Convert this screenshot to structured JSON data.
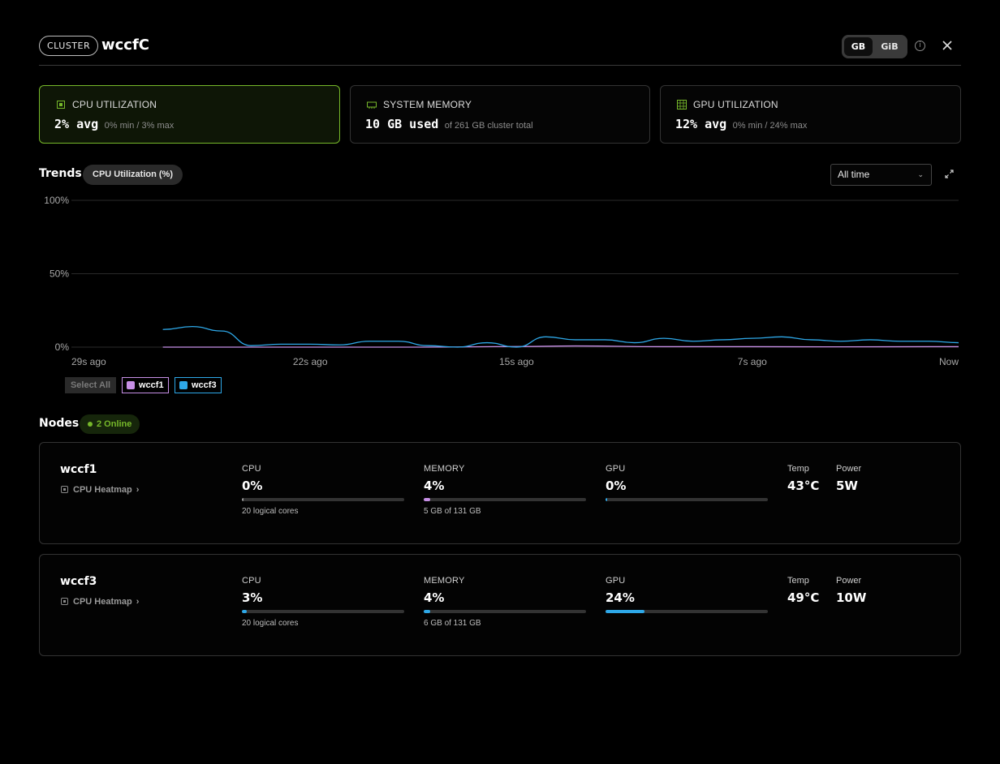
{
  "header": {
    "badge": "CLUSTER",
    "cluster_name": "wccfC",
    "units": [
      "GB",
      "GiB"
    ],
    "selected_unit": "GB",
    "info_icon": "info-icon",
    "close_icon": "close-icon"
  },
  "stats": {
    "cpu": {
      "label": "CPU UTILIZATION",
      "value": "2% avg",
      "sub": "0% min / 3% max",
      "icon": "cpu-chip-icon"
    },
    "memory": {
      "label": "SYSTEM MEMORY",
      "value": "10 GB used",
      "sub": "of 261 GB cluster total",
      "icon": "memory-module-icon"
    },
    "gpu": {
      "label": "GPU UTILIZATION",
      "value": "12% avg",
      "sub": "0% min / 24% max",
      "icon": "gpu-grid-icon"
    }
  },
  "trends": {
    "title": "Trends",
    "metric": "CPU Utilization (%)",
    "range": "All time",
    "expand_icon": "expand-icon"
  },
  "legend": {
    "select_all": "Select All",
    "items": [
      {
        "name": "wccf1",
        "color": "#c78fe6"
      },
      {
        "name": "wccf3",
        "color": "#2ea8e8"
      }
    ]
  },
  "chart_data": {
    "type": "line",
    "ylim": [
      0,
      100
    ],
    "y_ticks": [
      "100%",
      "50%",
      "0%"
    ],
    "x_ticks": [
      "29s ago",
      "22s ago",
      "15s ago",
      "7s ago",
      "Now"
    ],
    "x_tick_values": [
      -29,
      -22,
      -15,
      -7,
      0
    ],
    "xlim": [
      -29,
      0
    ],
    "grid": true,
    "legend_position": "bottom-left",
    "series": [
      {
        "name": "wccf1",
        "color": "#c78fe6",
        "x": [
          -27,
          -24,
          -21,
          -18,
          -15,
          -13,
          -10,
          -7,
          -4,
          -1,
          0
        ],
        "values": [
          0,
          0,
          0,
          0,
          0.4,
          0.8,
          0.3,
          0.3,
          0.2,
          0.3,
          0.3
        ]
      },
      {
        "name": "wccf3",
        "color": "#2ea8e8",
        "x": [
          -27,
          -26,
          -25,
          -24,
          -23,
          -22,
          -21,
          -20,
          -19,
          -18,
          -17,
          -16,
          -15,
          -14,
          -13,
          -12,
          -11,
          -10,
          -9,
          -8,
          -7,
          -6,
          -5,
          -4,
          -3,
          -2,
          -1,
          0
        ],
        "values": [
          12,
          14,
          11,
          1,
          2,
          2,
          1.5,
          4,
          4,
          1,
          0,
          3,
          0,
          7,
          5,
          5,
          3,
          6,
          4,
          5,
          6,
          7,
          5,
          4,
          5,
          4,
          4,
          3
        ]
      }
    ]
  },
  "nodes": {
    "title": "Nodes",
    "online": "2 Online",
    "heatmap_label": "CPU Heatmap",
    "list": [
      {
        "name": "wccf1",
        "cpu": {
          "label": "CPU",
          "value": "0%",
          "pct": 0,
          "sub": "20 logical cores",
          "color": "#9a9a9a"
        },
        "memory": {
          "label": "MEMORY",
          "value": "4%",
          "pct": 4,
          "sub": "5 GB of 131 GB",
          "color": "#c78fe6"
        },
        "gpu": {
          "label": "GPU",
          "value": "0%",
          "pct": 0,
          "sub": "",
          "color": "#2ea8e8"
        },
        "temp": {
          "label": "Temp",
          "value": "43°C"
        },
        "power": {
          "label": "Power",
          "value": "5W"
        }
      },
      {
        "name": "wccf3",
        "cpu": {
          "label": "CPU",
          "value": "3%",
          "pct": 3,
          "sub": "20 logical cores",
          "color": "#2ea8e8"
        },
        "memory": {
          "label": "MEMORY",
          "value": "4%",
          "pct": 4,
          "sub": "6 GB of 131 GB",
          "color": "#2ea8e8"
        },
        "gpu": {
          "label": "GPU",
          "value": "24%",
          "pct": 24,
          "sub": "",
          "color": "#2ea8e8"
        },
        "temp": {
          "label": "Temp",
          "value": "49°C"
        },
        "power": {
          "label": "Power",
          "value": "10W"
        }
      }
    ]
  }
}
